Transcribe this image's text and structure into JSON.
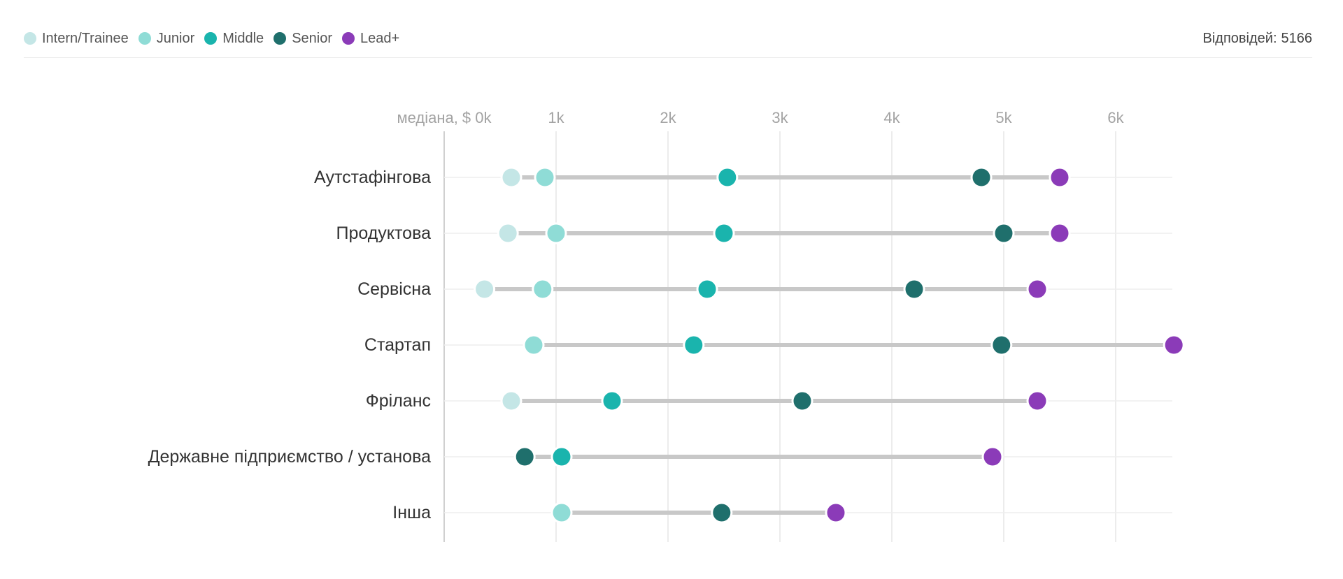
{
  "header": {
    "responses_label": "Відповідей:",
    "responses_value": "5166"
  },
  "legend": [
    {
      "name": "Intern/Trainee",
      "color": "#c4e6e6"
    },
    {
      "name": "Junior",
      "color": "#8fdcd6"
    },
    {
      "name": "Middle",
      "color": "#1ab4ad"
    },
    {
      "name": "Senior",
      "color": "#1f6f6c"
    },
    {
      "name": "Lead+",
      "color": "#8b3bb8"
    }
  ],
  "chart_data": {
    "type": "scatter",
    "axis_prefix": "медіана, $",
    "xlim": [
      0,
      6.5
    ],
    "x_ticks": [
      0,
      1,
      2,
      3,
      4,
      5,
      6
    ],
    "x_tick_labels": [
      "0k",
      "1k",
      "2k",
      "3k",
      "4k",
      "5k",
      "6k"
    ],
    "grid": true,
    "legend_position": "top-left",
    "categories": [
      "Аутстафінгова",
      "Продуктова",
      "Сервісна",
      "Стартап",
      "Фріланс",
      "Державне підприємство / установа",
      "Інша"
    ],
    "series": [
      {
        "name": "Intern/Trainee",
        "color": "#c4e6e6",
        "values": [
          0.6,
          0.57,
          0.36,
          null,
          0.6,
          null,
          null
        ]
      },
      {
        "name": "Junior",
        "color": "#8fdcd6",
        "values": [
          0.9,
          1.0,
          0.88,
          0.8,
          null,
          null,
          1.05
        ]
      },
      {
        "name": "Middle",
        "color": "#1ab4ad",
        "values": [
          2.53,
          2.5,
          2.35,
          2.23,
          1.5,
          1.05,
          null
        ]
      },
      {
        "name": "Senior",
        "color": "#1f6f6c",
        "values": [
          4.8,
          5.0,
          4.2,
          4.98,
          3.2,
          0.72,
          2.48
        ]
      },
      {
        "name": "Lead+",
        "color": "#8b3bb8",
        "values": [
          5.5,
          5.5,
          5.3,
          6.52,
          5.3,
          4.9,
          3.5
        ]
      }
    ]
  }
}
